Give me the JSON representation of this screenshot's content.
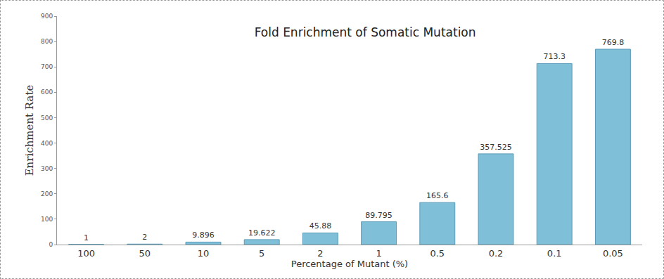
{
  "chart_data": {
    "type": "bar",
    "title": "Fold Enrichment of Somatic Mutation",
    "x_label": "Percentage of Mutant (%)",
    "y_label": "Enrichment Rate",
    "categories": [
      "100",
      "50",
      "10",
      "5",
      "2",
      "1",
      "0.5",
      "0.2",
      "0.1",
      "0.05"
    ],
    "values": [
      1,
      2,
      9.896,
      19.622,
      45.88,
      89.795,
      165.6,
      357.525,
      713.3,
      769.8
    ],
    "color": "#7fbfd8",
    "ylim": [
      0,
      900
    ],
    "yticks": [
      0,
      100,
      200,
      300,
      400,
      500,
      600,
      700,
      800,
      900
    ],
    "grid": false,
    "data_labels": true
  }
}
